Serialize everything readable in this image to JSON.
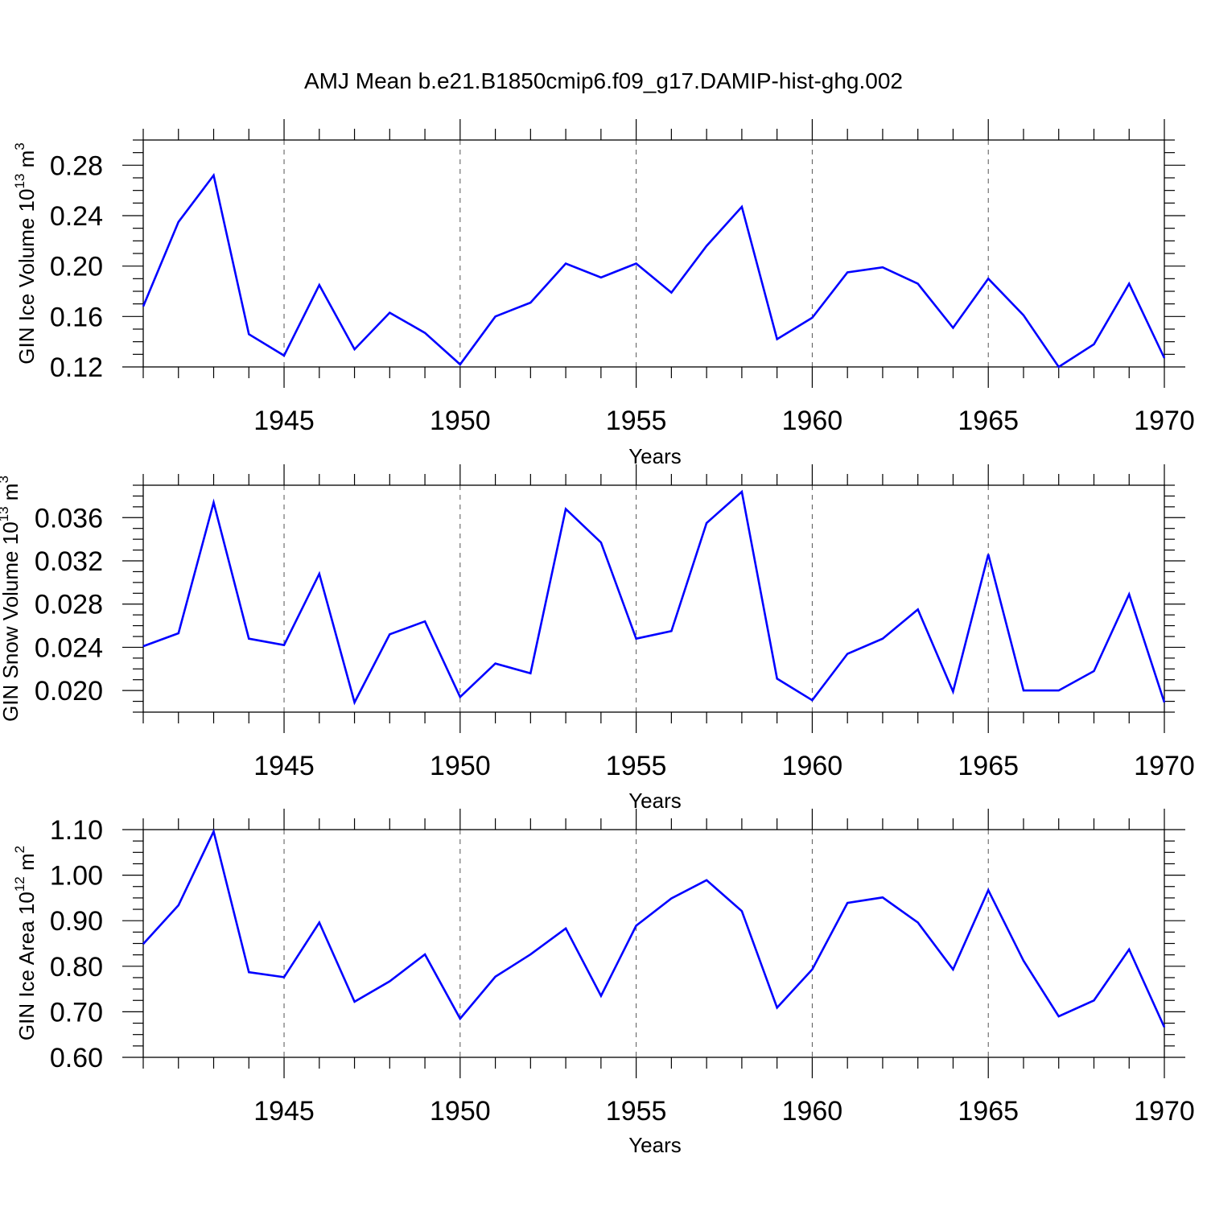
{
  "title": "AMJ Mean b.e21.B1850cmip6.f09_g17.DAMIP-hist-ghg.002",
  "colors": {
    "series": "#0000ff",
    "frame": "#000000",
    "grid": "#555555"
  },
  "chart_data": [
    {
      "type": "line",
      "ylabel": {
        "text": "GIN Ice Volume 10",
        "sup": "13",
        "unit": " m",
        "unit_sup": "3"
      },
      "xlabel": "Years",
      "xlim": [
        1941,
        1970
      ],
      "ylim": [
        0.12,
        0.3
      ],
      "xticks": [
        "1945",
        "1950",
        "1955",
        "1960",
        "1965",
        "1970"
      ],
      "yticks": [
        "0.12",
        "0.16",
        "0.20",
        "0.24",
        "0.28"
      ],
      "grid": "dashed vertical at major x ticks",
      "x": [
        1941,
        1942,
        1943,
        1944,
        1945,
        1946,
        1947,
        1948,
        1949,
        1950,
        1951,
        1952,
        1953,
        1954,
        1955,
        1956,
        1957,
        1958,
        1959,
        1960,
        1961,
        1962,
        1963,
        1964,
        1965,
        1966,
        1967,
        1968,
        1969,
        1970
      ],
      "values": [
        0.168,
        0.235,
        0.272,
        0.146,
        0.129,
        0.185,
        0.134,
        0.163,
        0.147,
        0.122,
        0.16,
        0.171,
        0.202,
        0.191,
        0.202,
        0.179,
        0.216,
        0.247,
        0.142,
        0.159,
        0.195,
        0.199,
        0.186,
        0.151,
        0.19,
        0.161,
        0.12,
        0.138,
        0.186,
        0.127
      ]
    },
    {
      "type": "line",
      "ylabel": {
        "text": "GIN Snow Volume 10",
        "sup": "13",
        "unit": " m",
        "unit_sup": "3"
      },
      "xlabel": "Years",
      "xlim": [
        1941,
        1970
      ],
      "ylim": [
        0.018,
        0.039
      ],
      "xticks": [
        "1945",
        "1950",
        "1955",
        "1960",
        "1965",
        "1970"
      ],
      "yticks": [
        "0.020",
        "0.024",
        "0.028",
        "0.032",
        "0.036"
      ],
      "grid": "dashed vertical at major x ticks",
      "x": [
        1941,
        1942,
        1943,
        1944,
        1945,
        1946,
        1947,
        1948,
        1949,
        1950,
        1951,
        1952,
        1953,
        1954,
        1955,
        1956,
        1957,
        1958,
        1959,
        1960,
        1961,
        1962,
        1963,
        1964,
        1965,
        1966,
        1967,
        1968,
        1969,
        1970
      ],
      "values": [
        0.0241,
        0.0253,
        0.0374,
        0.0248,
        0.0242,
        0.0308,
        0.0189,
        0.0252,
        0.0264,
        0.0194,
        0.0225,
        0.0216,
        0.0368,
        0.0337,
        0.0248,
        0.0255,
        0.0355,
        0.0384,
        0.0211,
        0.0191,
        0.0234,
        0.0248,
        0.0275,
        0.0199,
        0.0326,
        0.02,
        0.02,
        0.0218,
        0.0289,
        0.0189
      ]
    },
    {
      "type": "line",
      "ylabel": {
        "text": "GIN Ice Area 10",
        "sup": "12",
        "unit": " m",
        "unit_sup": "2"
      },
      "xlabel": "Years",
      "xlim": [
        1941,
        1970
      ],
      "ylim": [
        0.6,
        1.1
      ],
      "xticks": [
        "1945",
        "1950",
        "1955",
        "1960",
        "1965",
        "1970"
      ],
      "yticks": [
        "0.60",
        "0.70",
        "0.80",
        "0.90",
        "1.00",
        "1.10"
      ],
      "grid": "dashed vertical at major x ticks",
      "x": [
        1941,
        1942,
        1943,
        1944,
        1945,
        1946,
        1947,
        1948,
        1949,
        1950,
        1951,
        1952,
        1953,
        1954,
        1955,
        1956,
        1957,
        1958,
        1959,
        1960,
        1961,
        1962,
        1963,
        1964,
        1965,
        1966,
        1967,
        1968,
        1969,
        1970
      ],
      "values": [
        0.849,
        0.934,
        1.096,
        0.787,
        0.776,
        0.896,
        0.722,
        0.767,
        0.826,
        0.685,
        0.777,
        0.826,
        0.883,
        0.735,
        0.889,
        0.949,
        0.989,
        0.921,
        0.709,
        0.793,
        0.939,
        0.951,
        0.896,
        0.793,
        0.967,
        0.812,
        0.69,
        0.725,
        0.837,
        0.666
      ]
    }
  ]
}
